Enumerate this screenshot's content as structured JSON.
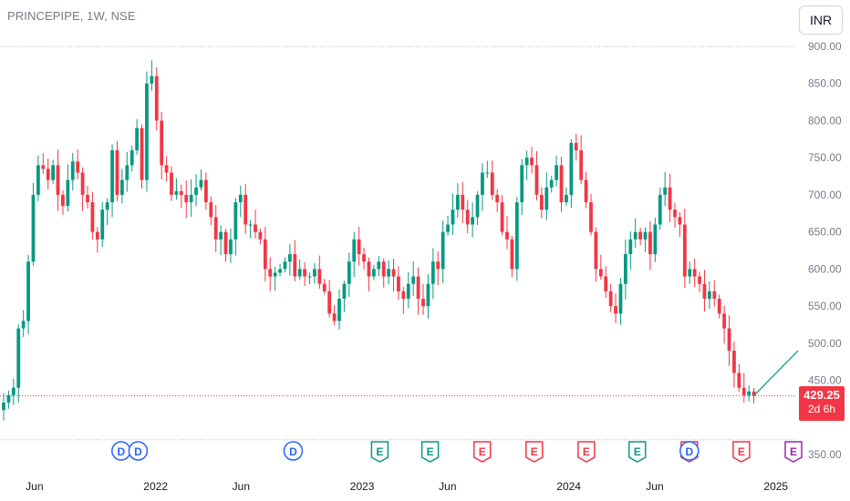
{
  "header": {
    "symbol_title": "PRINCEPIPE, 1W, NSE",
    "currency_label": "INR"
  },
  "price_label": {
    "price": "429.25",
    "countdown": "2d 6h"
  },
  "colors": {
    "up": "#089981",
    "down": "#f23645",
    "dividend": "#2962ff",
    "earnings_past_beat": "#089981",
    "earnings_past_miss": "#f23645",
    "earnings_future": "#9c27b0",
    "axis_text": "#787b86",
    "gridline": "#b2b5be"
  },
  "chart_data": {
    "type": "candlestick",
    "timeframe": "1W",
    "y_axis": {
      "position": "right",
      "ticks": [
        "900.00",
        "850.00",
        "800.00",
        "750.00",
        "700.00",
        "650.00",
        "600.00",
        "550.00",
        "500.00",
        "450.00",
        "350.00"
      ],
      "range": [
        340,
        915
      ]
    },
    "x_axis": {
      "labels": [
        "Jun",
        "2022",
        "Jun",
        "2023",
        "Jun",
        "2024",
        "Jun",
        "2025"
      ],
      "range": [
        "2021-04",
        "2025-02"
      ]
    },
    "reference_lines": [
      {
        "label": "high",
        "value": 900
      },
      {
        "label": "last",
        "value": 429.25
      },
      {
        "label": "low",
        "value": 370
      }
    ],
    "weekly_closes_approx": [
      420,
      430,
      440,
      520,
      530,
      610,
      700,
      740,
      735,
      720,
      740,
      700,
      685,
      720,
      745,
      730,
      700,
      690,
      650,
      640,
      680,
      690,
      760,
      700,
      720,
      740,
      760,
      790,
      720,
      850,
      860,
      800,
      740,
      730,
      700,
      705,
      700,
      690,
      700,
      710,
      720,
      690,
      670,
      640,
      650,
      620,
      640,
      690,
      700,
      660,
      660,
      650,
      640,
      600,
      590,
      595,
      600,
      610,
      620,
      590,
      600,
      590,
      590,
      600,
      580,
      570,
      540,
      530,
      560,
      580,
      610,
      640,
      620,
      610,
      590,
      600,
      610,
      590,
      600,
      590,
      570,
      560,
      580,
      590,
      560,
      550,
      580,
      610,
      600,
      650,
      660,
      680,
      700,
      680,
      660,
      670,
      700,
      730,
      730,
      700,
      690,
      650,
      640,
      600,
      690,
      740,
      750,
      740,
      700,
      680,
      710,
      720,
      740,
      690,
      700,
      770,
      760,
      720,
      690,
      650,
      600,
      590,
      570,
      550,
      540,
      580,
      620,
      640,
      650,
      640,
      650,
      620,
      660,
      700,
      710,
      680,
      670,
      660,
      590,
      600,
      590,
      580,
      560,
      570,
      560,
      540,
      520,
      490,
      460,
      440,
      430,
      435,
      429.25
    ],
    "events": [
      {
        "type": "dividend",
        "letter": "D",
        "period": "2021-11"
      },
      {
        "type": "dividend",
        "letter": "D",
        "period": "2021-12"
      },
      {
        "type": "dividend",
        "letter": "D",
        "period": "2022-09"
      },
      {
        "type": "earnings",
        "letter": "E",
        "result": "beat",
        "period": "2023-02"
      },
      {
        "type": "earnings",
        "letter": "E",
        "result": "beat",
        "period": "2023-05"
      },
      {
        "type": "earnings",
        "letter": "E",
        "result": "miss",
        "period": "2023-08"
      },
      {
        "type": "earnings",
        "letter": "E",
        "result": "miss",
        "period": "2023-11"
      },
      {
        "type": "earnings",
        "letter": "E",
        "result": "miss",
        "period": "2024-02"
      },
      {
        "type": "earnings",
        "letter": "E",
        "result": "beat",
        "period": "2024-05"
      },
      {
        "type": "earnings",
        "letter": "E",
        "result": "miss",
        "period": "2024-08"
      },
      {
        "type": "dividend",
        "letter": "D",
        "period": "2024-08"
      },
      {
        "type": "earnings",
        "letter": "E",
        "result": "miss",
        "period": "2024-11"
      },
      {
        "type": "earnings",
        "letter": "E",
        "result": "future",
        "period": "2025-02"
      }
    ],
    "trendline": {
      "from": 429.25,
      "to": 490
    }
  }
}
